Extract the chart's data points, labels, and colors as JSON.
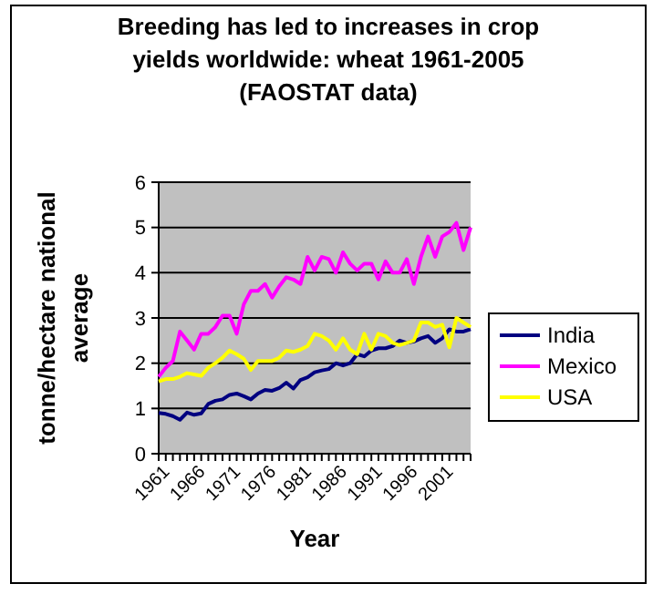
{
  "chart_data": {
    "type": "line",
    "title": "Breeding has led to increases in crop yields worldwide: wheat 1961-2005 (FAOSTAT data)",
    "xlabel": "Year",
    "ylabel": "tonne/hectare national average",
    "x": [
      1961,
      1962,
      1963,
      1964,
      1965,
      1966,
      1967,
      1968,
      1969,
      1970,
      1971,
      1972,
      1973,
      1974,
      1975,
      1976,
      1977,
      1978,
      1979,
      1980,
      1981,
      1982,
      1983,
      1984,
      1985,
      1986,
      1987,
      1988,
      1989,
      1990,
      1991,
      1992,
      1993,
      1994,
      1995,
      1996,
      1997,
      1998,
      1999,
      2000,
      2001,
      2002,
      2003,
      2004,
      2005
    ],
    "series": [
      {
        "name": "India",
        "color": "#000080",
        "values": [
          0.9,
          0.88,
          0.83,
          0.75,
          0.91,
          0.86,
          0.89,
          1.1,
          1.17,
          1.2,
          1.3,
          1.33,
          1.27,
          1.2,
          1.33,
          1.41,
          1.39,
          1.45,
          1.57,
          1.44,
          1.63,
          1.69,
          1.8,
          1.84,
          1.87,
          2.0,
          1.95,
          2.0,
          2.2,
          2.15,
          2.28,
          2.33,
          2.33,
          2.38,
          2.5,
          2.45,
          2.48,
          2.55,
          2.6,
          2.45,
          2.55,
          2.75,
          2.7,
          2.7,
          2.75
        ]
      },
      {
        "name": "Mexico",
        "color": "#ff00ff",
        "values": [
          1.7,
          1.9,
          2.05,
          2.7,
          2.5,
          2.3,
          2.65,
          2.65,
          2.8,
          3.05,
          3.05,
          2.65,
          3.3,
          3.6,
          3.6,
          3.75,
          3.45,
          3.7,
          3.9,
          3.85,
          3.75,
          4.35,
          4.05,
          4.35,
          4.3,
          4.0,
          4.45,
          4.2,
          4.05,
          4.2,
          4.2,
          3.85,
          4.25,
          4.0,
          4.0,
          4.3,
          3.75,
          4.35,
          4.8,
          4.35,
          4.8,
          4.9,
          5.1,
          4.5,
          5.0
        ]
      },
      {
        "name": "USA",
        "color": "#ffff00",
        "values": [
          1.6,
          1.65,
          1.65,
          1.7,
          1.78,
          1.75,
          1.72,
          1.9,
          2.0,
          2.12,
          2.28,
          2.2,
          2.1,
          1.85,
          2.05,
          2.05,
          2.05,
          2.12,
          2.28,
          2.25,
          2.3,
          2.38,
          2.65,
          2.6,
          2.5,
          2.3,
          2.55,
          2.3,
          2.2,
          2.65,
          2.3,
          2.65,
          2.6,
          2.45,
          2.4,
          2.45,
          2.5,
          2.9,
          2.9,
          2.8,
          2.85,
          2.35,
          3.0,
          2.9,
          2.8
        ]
      }
    ],
    "xlim": [
      1961,
      2005
    ],
    "xticks": [
      1961,
      {
        "value": 1962,
        "label": null
      },
      {
        "value": 1963,
        "label": null
      },
      {
        "value": 1964,
        "label": null
      },
      {
        "value": 1965,
        "label": null
      },
      1966,
      {
        "value": 1967,
        "label": null
      },
      {
        "value": 1968,
        "label": null
      },
      {
        "value": 1969,
        "label": null
      },
      {
        "value": 1970,
        "label": null
      },
      1971,
      {
        "value": 1972,
        "label": null
      },
      {
        "value": 1973,
        "label": null
      },
      {
        "value": 1974,
        "label": null
      },
      {
        "value": 1975,
        "label": null
      },
      1976,
      {
        "value": 1977,
        "label": null
      },
      {
        "value": 1978,
        "label": null
      },
      {
        "value": 1979,
        "label": null
      },
      {
        "value": 1980,
        "label": null
      },
      1981,
      {
        "value": 1982,
        "label": null
      },
      {
        "value": 1983,
        "label": null
      },
      {
        "value": 1984,
        "label": null
      },
      {
        "value": 1985,
        "label": null
      },
      1986,
      {
        "value": 1987,
        "label": null
      },
      {
        "value": 1988,
        "label": null
      },
      {
        "value": 1989,
        "label": null
      },
      {
        "value": 1990,
        "label": null
      },
      1991,
      {
        "value": 1992,
        "label": null
      },
      {
        "value": 1993,
        "label": null
      },
      {
        "value": 1994,
        "label": null
      },
      {
        "value": 1995,
        "label": null
      },
      1996,
      {
        "value": 1997,
        "label": null
      },
      {
        "value": 1998,
        "label": null
      },
      {
        "value": 1999,
        "label": null
      },
      {
        "value": 2000,
        "label": null
      },
      2001,
      {
        "value": 2002,
        "label": null
      },
      {
        "value": 2003,
        "label": null
      },
      {
        "value": 2004,
        "label": null
      },
      {
        "value": 2005,
        "label": null
      }
    ],
    "ylim": [
      0,
      6
    ],
    "yticks": [
      0,
      1,
      2,
      3,
      4,
      5,
      6
    ],
    "grid": "y",
    "legend": "right",
    "marker": "none",
    "line_style": "solid"
  }
}
